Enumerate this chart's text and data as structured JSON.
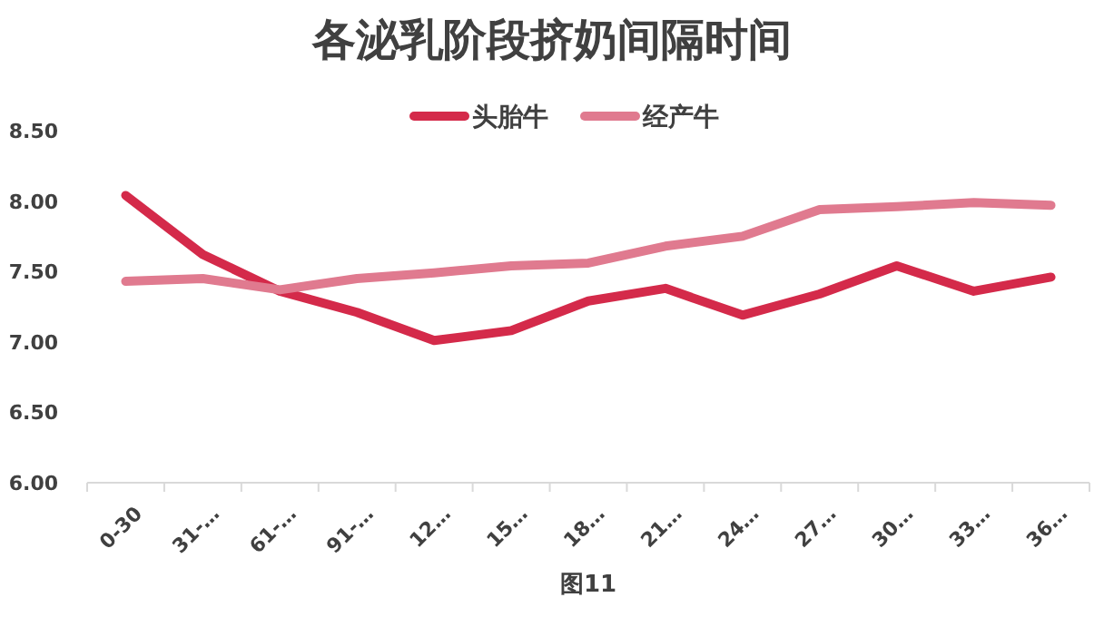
{
  "chart_data": {
    "type": "line",
    "title": "各泌乳阶段挤奶间隔时间",
    "xlabel": "图11",
    "categories": [
      "0-30",
      "31-…",
      "61-…",
      "91-…",
      "12…",
      "15…",
      "18…",
      "21…",
      "24…",
      "27…",
      "30…",
      "33…",
      "36…"
    ],
    "series": [
      {
        "name": "头胎牛",
        "color": "#d42a4a",
        "values": [
          8.04,
          7.62,
          7.36,
          7.21,
          7.01,
          7.08,
          7.29,
          7.38,
          7.19,
          7.34,
          7.54,
          7.36,
          7.46
        ]
      },
      {
        "name": "经产牛",
        "color": "#e07a8f",
        "values": [
          7.43,
          7.45,
          7.37,
          7.45,
          7.49,
          7.54,
          7.56,
          7.68,
          7.75,
          7.94,
          7.96,
          7.99,
          7.97
        ]
      }
    ],
    "ylim": [
      6,
      8.5
    ],
    "yticks": [
      {
        "value": 6,
        "label": "6.00"
      },
      {
        "value": 6.5,
        "label": "6.50"
      },
      {
        "value": 7,
        "label": "7.00"
      },
      {
        "value": 7.5,
        "label": "7.50"
      },
      {
        "value": 8,
        "label": "8.00"
      },
      {
        "value": 8.5,
        "label": "8.50"
      }
    ],
    "grid": false,
    "legend": "top",
    "marker": "none",
    "line_style": "solid"
  }
}
